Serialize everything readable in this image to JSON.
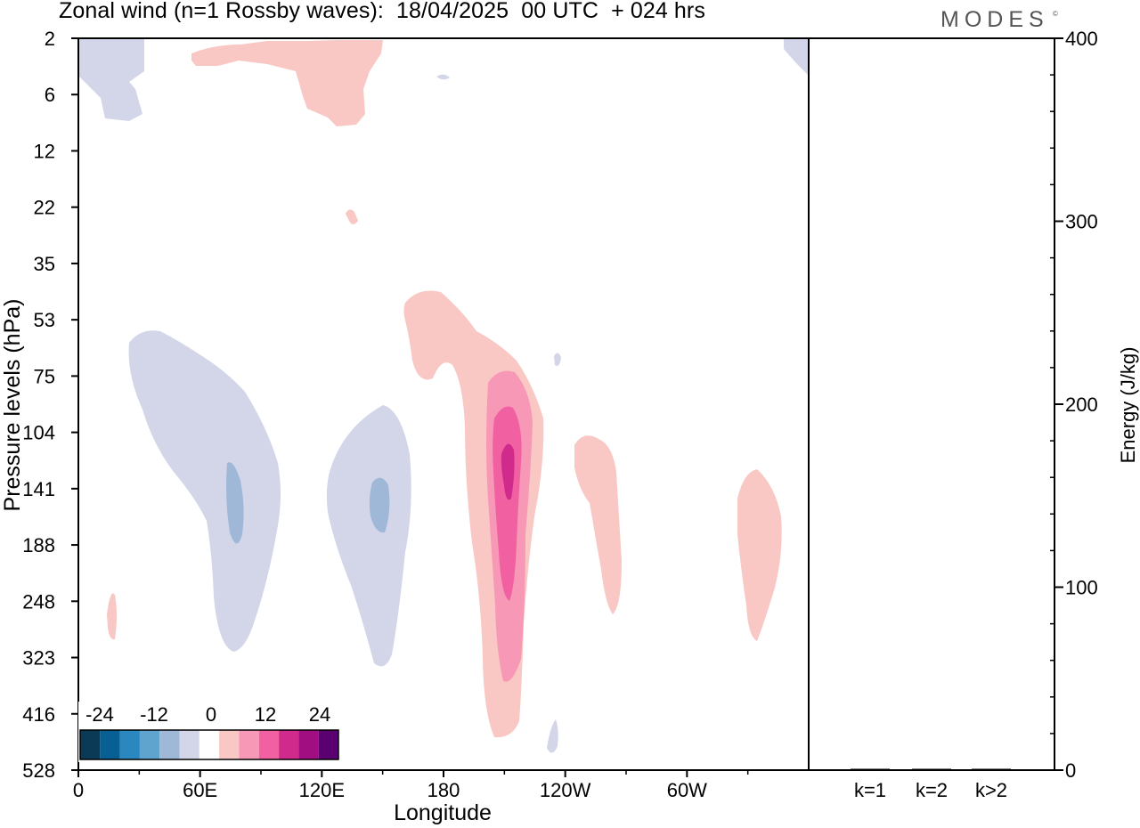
{
  "header": {
    "title": "Zonal wind (n=1 Rossby waves):  18/04/2025  00 UTC  + 024 hrs",
    "brand": "MODES",
    "brand_mark": "©"
  },
  "chart_data": [
    {
      "type": "contour",
      "xlabel": "Longitude",
      "ylabel": "Pressure levels (hPa)",
      "x_ticks": [
        "0",
        "60E",
        "120E",
        "180",
        "120W",
        "60W"
      ],
      "y_ticks": [
        "2",
        "6",
        "12",
        "22",
        "35",
        "53",
        "75",
        "104",
        "141",
        "188",
        "248",
        "323",
        "416",
        "528"
      ],
      "xlim_deg_east": [
        0,
        360
      ],
      "ylim_hpa": [
        2,
        528
      ],
      "colorbar": {
        "tick_labels": [
          "-24",
          "-12",
          "0",
          "12",
          "24"
        ],
        "colors": [
          "#0a3a55",
          "#075f93",
          "#2a87c0",
          "#5fa3cf",
          "#a0b8d8",
          "#d3d5e9",
          "#ffffff",
          "#f9c8c4",
          "#f799b6",
          "#f161a2",
          "#cf2a8c",
          "#a00e82",
          "#5b0070"
        ]
      },
      "regions": [
        {
          "level": -6,
          "lon_center": 25,
          "p_center": 5,
          "note": "upper-left negative patch"
        },
        {
          "level": 6,
          "lon_center": 125,
          "p_center": 3.5,
          "note": "upper positive patch"
        },
        {
          "level": -6,
          "lon_center": 85,
          "p_center": 160,
          "note": "negative lobe 40E-100E"
        },
        {
          "level": -12,
          "lon_center": 77,
          "p_center": 160
        },
        {
          "level": -6,
          "lon_center": 155,
          "p_center": 170,
          "note": "negative lobe 120E-165E"
        },
        {
          "level": -12,
          "lon_center": 148,
          "p_center": 150
        },
        {
          "level": 6,
          "lon_center": 205,
          "p_center": 180,
          "note": "main positive tongue near dateline"
        },
        {
          "level": 12,
          "lon_center": 200,
          "p_center": 200
        },
        {
          "level": 18,
          "lon_center": 200,
          "p_center": 150
        },
        {
          "level": 24,
          "lon_center": 202,
          "p_center": 130
        },
        {
          "level": 6,
          "lon_center": 248,
          "p_center": 160,
          "note": "positive patch near 110W"
        },
        {
          "level": 6,
          "lon_center": 325,
          "p_center": 200,
          "note": "positive patch near 35W"
        },
        {
          "level": 6,
          "lon_center": 16,
          "p_center": 280
        }
      ]
    },
    {
      "type": "bar",
      "categories": [
        "k=1",
        "k=2",
        "k>2"
      ],
      "values": [
        0.5,
        0.1,
        0.3
      ],
      "ylabel": "Energy (J/kg)",
      "ylim": [
        0,
        400
      ],
      "y_ticks": [
        "0",
        "100",
        "200",
        "300",
        "400"
      ]
    }
  ]
}
